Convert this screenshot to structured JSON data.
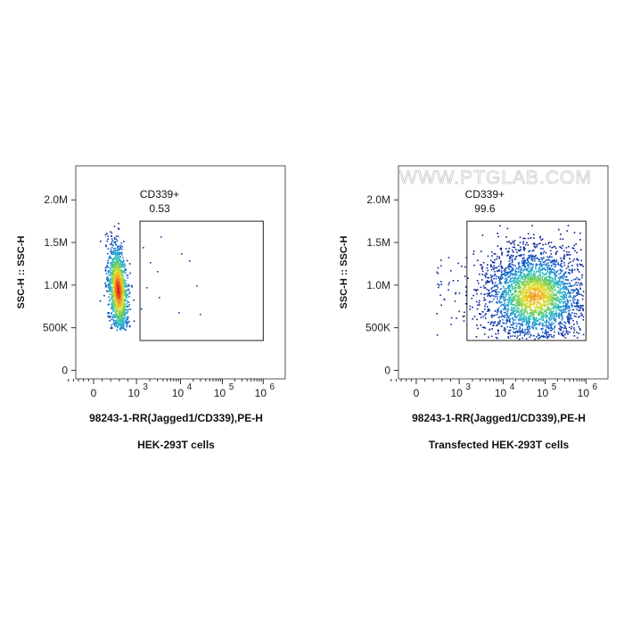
{
  "watermark": "WWW.PTGLAB.COM",
  "chart_data": [
    {
      "type": "scatter",
      "title": "",
      "caption": "HEK-293T cells",
      "xlabel": "98243-1-RR(Jagged1/CD339),PE-H",
      "ylabel": "SSC-H :: SSC-H",
      "x_scale": "biexponential",
      "x_ticks": [
        {
          "base": "0",
          "exp": ""
        },
        {
          "base": "10",
          "exp": "3"
        },
        {
          "base": "10",
          "exp": "4"
        },
        {
          "base": "10",
          "exp": "5"
        },
        {
          "base": "10",
          "exp": "6"
        }
      ],
      "y_ticks": [
        "0",
        "500K",
        "1.0M",
        "1.5M",
        "2.0M"
      ],
      "y_tick_values": [
        0,
        500000,
        1000000,
        1500000,
        2000000
      ],
      "ylim": [
        -100000,
        2400000
      ],
      "gate": {
        "name": "CD339+",
        "percent": "0.53",
        "x_range": [
          1200,
          1000000
        ],
        "y_range": [
          350000,
          1750000
        ]
      },
      "population": {
        "x_center": 400,
        "y_center": 950000,
        "description_free": true
      }
    },
    {
      "type": "scatter",
      "title": "",
      "caption": "Transfected HEK-293T cells",
      "xlabel": "98243-1-RR(Jagged1/CD339),PE-H",
      "ylabel": "SSC-H :: SSC-H",
      "x_scale": "biexponential",
      "x_ticks": [
        {
          "base": "0",
          "exp": ""
        },
        {
          "base": "10",
          "exp": "3"
        },
        {
          "base": "10",
          "exp": "4"
        },
        {
          "base": "10",
          "exp": "5"
        },
        {
          "base": "10",
          "exp": "6"
        }
      ],
      "y_ticks": [
        "0",
        "500K",
        "1.0M",
        "1.5M",
        "2.0M"
      ],
      "y_tick_values": [
        0,
        500000,
        1000000,
        1500000,
        2000000
      ],
      "ylim": [
        -100000,
        2400000
      ],
      "gate": {
        "name": "CD339+",
        "percent": "99.6",
        "x_range": [
          1500,
          1000000
        ],
        "y_range": [
          350000,
          1750000
        ]
      },
      "population": {
        "x_center": 120000,
        "y_center": 880000
      }
    }
  ]
}
